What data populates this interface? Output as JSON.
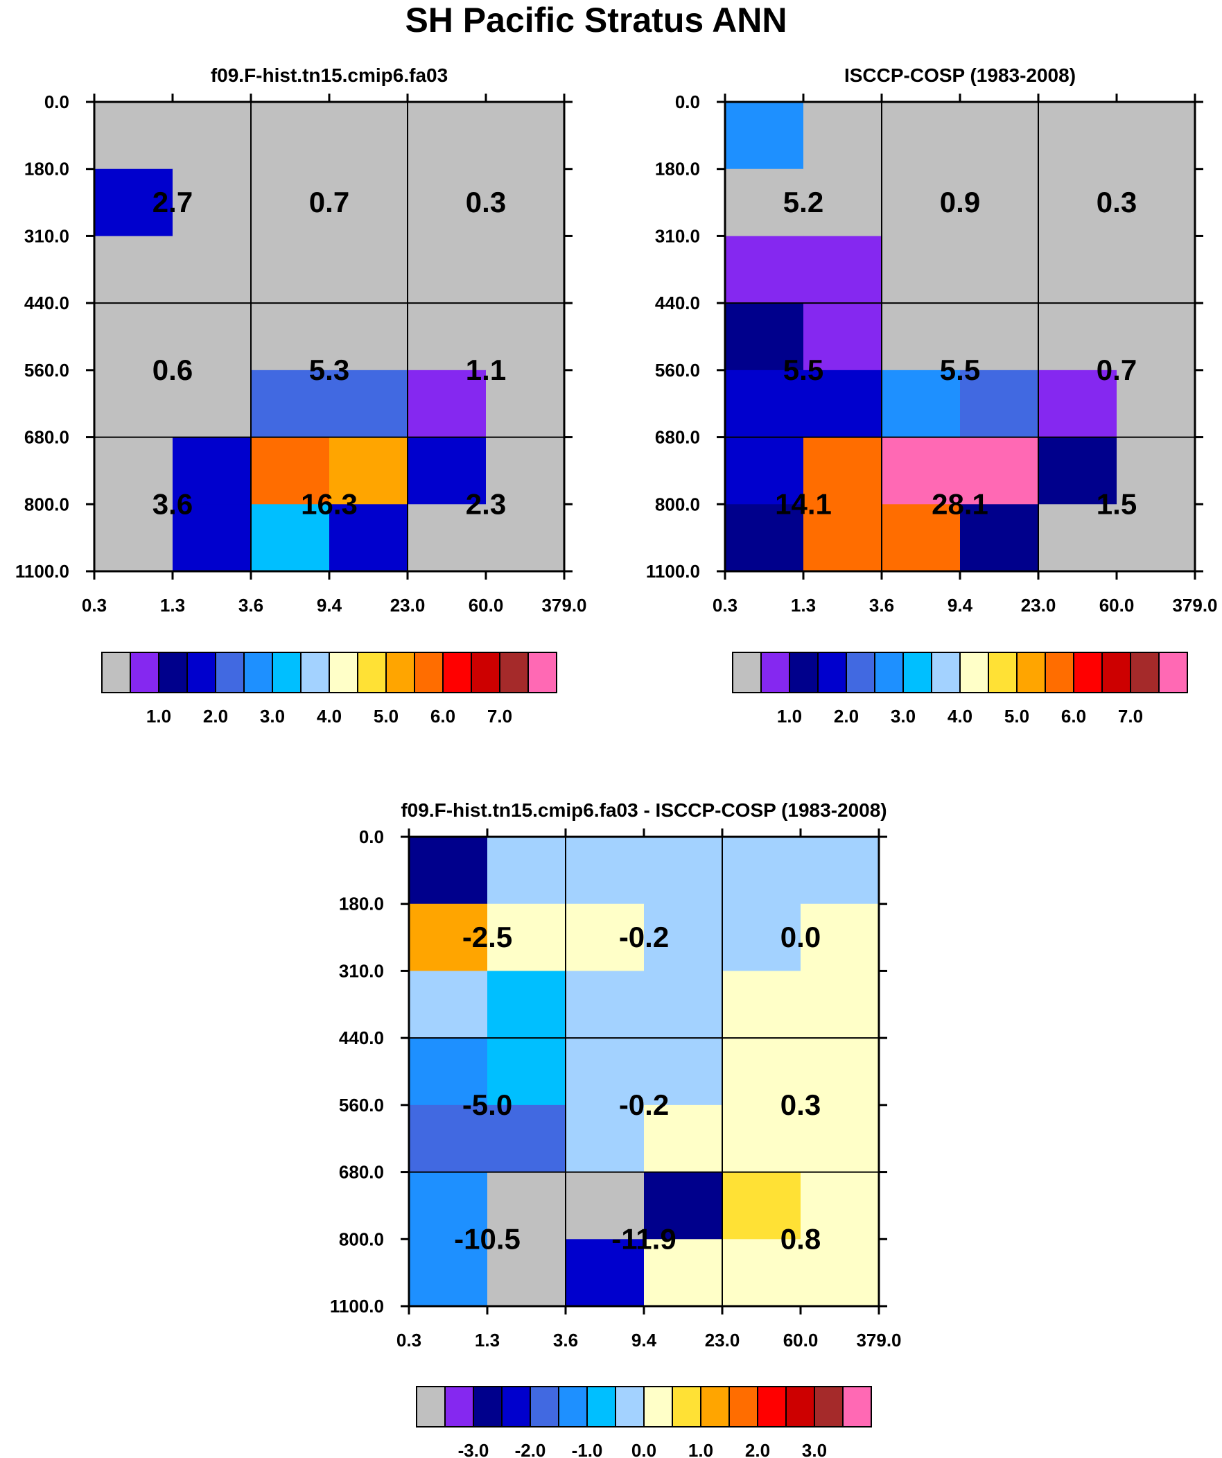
{
  "figure_title": "SH Pacific Stratus ANN",
  "palettes": {
    "main": [
      "#c0c0c0",
      "#8528f0",
      "#00008c",
      "#0000cd",
      "#4169e1",
      "#1e90ff",
      "#00bfff",
      "#a3d2ff",
      "#ffffc8",
      "#ffe135",
      "#ffa500",
      "#ff6d00",
      "#ff0000",
      "#cd0000",
      "#a52a2a",
      "#ff69b4"
    ],
    "diff": [
      "#c0c0c0",
      "#8528f0",
      "#00008c",
      "#0000cd",
      "#4169e1",
      "#1e90ff",
      "#00bfff",
      "#a3d2ff",
      "#ffffc8",
      "#ffe135",
      "#ffa500",
      "#ff6d00",
      "#ff0000",
      "#cd0000",
      "#a52a2a",
      "#ff69b4"
    ]
  },
  "chart_data": [
    {
      "type": "heatmap",
      "title": "f09.F-hist.tn15.cmip6.fa03",
      "x_tick_labels": [
        "0.3",
        "1.3",
        "3.6",
        "9.4",
        "23.0",
        "60.0",
        "379.0"
      ],
      "y_tick_labels": [
        "0.0",
        "180.0",
        "310.0",
        "440.0",
        "560.0",
        "680.0",
        "800.0",
        "1100.0"
      ],
      "palette": "main",
      "color_index_grid": [
        [
          0,
          0,
          0,
          0,
          0,
          0
        ],
        [
          3,
          0,
          0,
          0,
          0,
          0
        ],
        [
          0,
          0,
          0,
          0,
          0,
          0
        ],
        [
          0,
          0,
          0,
          0,
          0,
          0
        ],
        [
          0,
          0,
          4,
          4,
          1,
          0
        ],
        [
          0,
          3,
          11,
          10,
          3,
          0
        ],
        [
          0,
          3,
          6,
          3,
          0,
          0
        ]
      ],
      "group_values": [
        [
          "2.7",
          "0.7",
          "0.3"
        ],
        [
          "0.6",
          "5.3",
          "1.1"
        ],
        [
          "3.6",
          "16.3",
          "2.3"
        ]
      ],
      "colorbar_labels": [
        "1.0",
        "2.0",
        "3.0",
        "4.0",
        "5.0",
        "6.0",
        "7.0"
      ]
    },
    {
      "type": "heatmap",
      "title": "ISCCP-COSP (1983-2008)",
      "x_tick_labels": [
        "0.3",
        "1.3",
        "3.6",
        "9.4",
        "23.0",
        "60.0",
        "379.0"
      ],
      "y_tick_labels": [
        "0.0",
        "180.0",
        "310.0",
        "440.0",
        "560.0",
        "680.0",
        "800.0",
        "1100.0"
      ],
      "palette": "main",
      "color_index_grid": [
        [
          5,
          0,
          0,
          0,
          0,
          0
        ],
        [
          0,
          0,
          0,
          0,
          0,
          0
        ],
        [
          1,
          1,
          0,
          0,
          0,
          0
        ],
        [
          2,
          1,
          0,
          0,
          0,
          0
        ],
        [
          3,
          3,
          5,
          4,
          1,
          0
        ],
        [
          3,
          11,
          15,
          15,
          2,
          0
        ],
        [
          2,
          11,
          11,
          2,
          0,
          0
        ]
      ],
      "group_values": [
        [
          "5.2",
          "0.9",
          "0.3"
        ],
        [
          "5.5",
          "5.5",
          "0.7"
        ],
        [
          "14.1",
          "28.1",
          "1.5"
        ]
      ],
      "colorbar_labels": [
        "1.0",
        "2.0",
        "3.0",
        "4.0",
        "5.0",
        "6.0",
        "7.0"
      ]
    },
    {
      "type": "heatmap",
      "title": "f09.F-hist.tn15.cmip6.fa03 - ISCCP-COSP (1983-2008)",
      "x_tick_labels": [
        "0.3",
        "1.3",
        "3.6",
        "9.4",
        "23.0",
        "60.0",
        "379.0"
      ],
      "y_tick_labels": [
        "0.0",
        "180.0",
        "310.0",
        "440.0",
        "560.0",
        "680.0",
        "800.0",
        "1100.0"
      ],
      "palette": "diff",
      "color_index_grid": [
        [
          2,
          7,
          7,
          7,
          7,
          7
        ],
        [
          10,
          8,
          8,
          7,
          7,
          8
        ],
        [
          7,
          6,
          7,
          7,
          8,
          8
        ],
        [
          5,
          6,
          7,
          7,
          8,
          8
        ],
        [
          4,
          4,
          7,
          8,
          8,
          8
        ],
        [
          5,
          0,
          0,
          2,
          9,
          8
        ],
        [
          5,
          0,
          3,
          8,
          8,
          8
        ]
      ],
      "group_values": [
        [
          "-2.5",
          "-0.2",
          "0.0"
        ],
        [
          "-5.0",
          "-0.2",
          "0.3"
        ],
        [
          "-10.5",
          "-11.9",
          "0.8"
        ]
      ],
      "colorbar_labels": [
        "-3.0",
        "-2.0",
        "-1.0",
        "0.0",
        "1.0",
        "2.0",
        "3.0"
      ]
    }
  ]
}
